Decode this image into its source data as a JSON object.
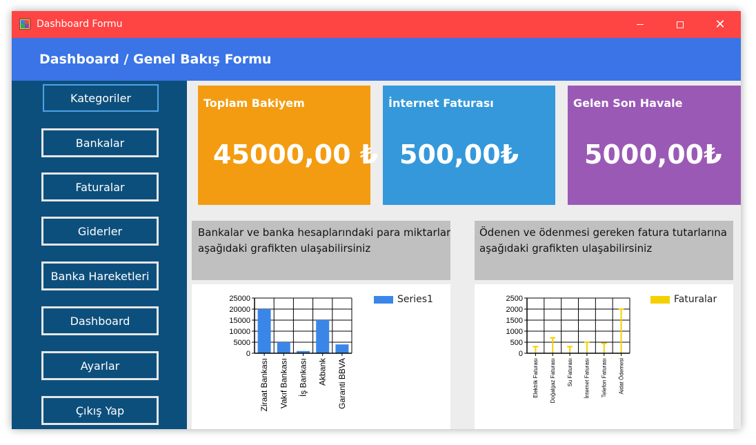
{
  "window": {
    "title": "Dashboard Formu"
  },
  "header": {
    "title": "Dashboard / Genel Bakış Formu"
  },
  "sidebar": {
    "items": [
      {
        "label": "Kategoriler"
      },
      {
        "label": "Bankalar"
      },
      {
        "label": "Faturalar"
      },
      {
        "label": "Giderler"
      },
      {
        "label": "Banka Hareketleri"
      },
      {
        "label": "Dashboard"
      },
      {
        "label": "Ayarlar"
      },
      {
        "label": "Çıkış Yap"
      }
    ]
  },
  "cards": [
    {
      "title": "Toplam Bakiyem",
      "value": "45000,00 ₺",
      "color": "#f39c12"
    },
    {
      "title": "İnternet Faturası",
      "value": "500,00₺",
      "color": "#3498db"
    },
    {
      "title": "Gelen Son Havale",
      "value": "5000,00₺",
      "color": "#9b59b6"
    }
  ],
  "descriptions": {
    "banks": {
      "line1": "Bankalar ve banka hesaplarındaki para miktarları",
      "line2": "aşağıdaki grafikten ulaşabilirsiniz"
    },
    "bills": {
      "line1": "Ödenen ve ödenmesi gereken fatura tutarlarına",
      "line2": "aşağıdaki grafikten ulaşabilirsiniz"
    }
  },
  "chart_data": [
    {
      "type": "bar",
      "categories": [
        "Ziraat Bankası",
        "Vakıf Bankası",
        "İş Bankası",
        "Akbank",
        "Garanti BBVA"
      ],
      "series": [
        {
          "name": "Series1",
          "values": [
            20000,
            5000,
            1000,
            15000,
            4000
          ],
          "color": "#3a86e8"
        }
      ],
      "yticks": [
        0,
        5000,
        10000,
        15000,
        20000,
        25000
      ],
      "ylim": [
        0,
        25000
      ],
      "grid": true,
      "legend": "top-right"
    },
    {
      "type": "bar",
      "categories": [
        "Elektrik Faturası",
        "Doğalgaz Faturası",
        "Su Faturası",
        "İnternet Faturası",
        "Telefon Faturası",
        "Aidat Ödemesi"
      ],
      "series": [
        {
          "name": "Faturalar",
          "values": [
            300,
            700,
            300,
            500,
            450,
            2000
          ],
          "color": "#f5d000"
        }
      ],
      "yticks": [
        0,
        500,
        1000,
        1500,
        2000,
        2500
      ],
      "ylim": [
        0,
        2500
      ],
      "grid": true,
      "legend": "top-right"
    }
  ]
}
